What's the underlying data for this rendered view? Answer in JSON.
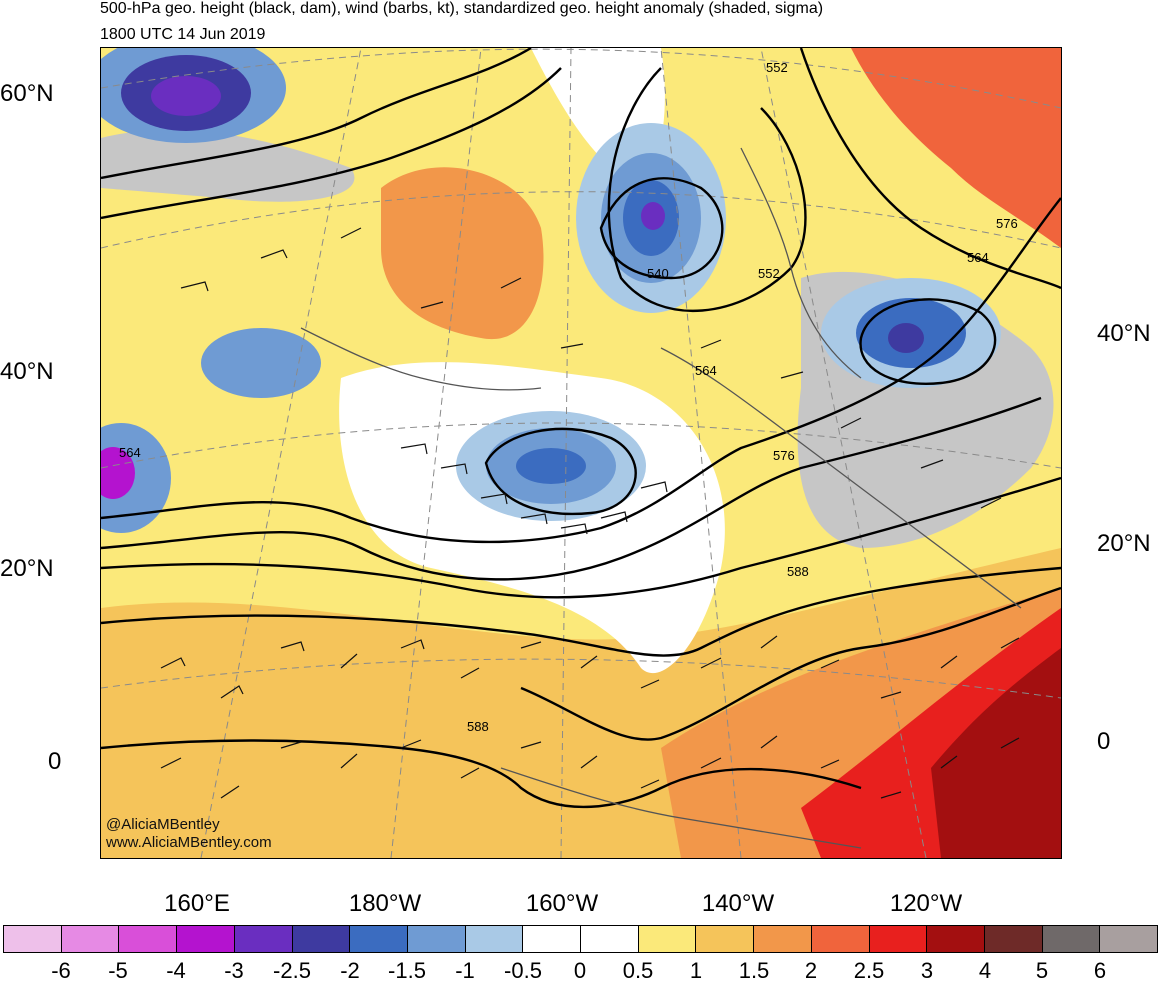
{
  "header": {
    "title": "500-hPa geo. height (black, dam), wind (barbs, kt), standardized geo. height anomaly (shaded, sigma)",
    "datetime": "1800 UTC 14 Jun 2019"
  },
  "credits": {
    "twitter": "@AliciaMBentley",
    "website": "www.AliciaMBentley.com"
  },
  "lat_labels_left": [
    "60°N",
    "40°N",
    "20°N",
    "0"
  ],
  "lat_labels_right": [
    "40°N",
    "20°N",
    "0"
  ],
  "lon_labels": [
    "160°E",
    "180°W",
    "160°W",
    "140°W",
    "120°W"
  ],
  "contour_labels": [
    "552",
    "576",
    "564",
    "540",
    "552",
    "564",
    "576",
    "564",
    "588",
    "588"
  ],
  "colorbar": {
    "tick_labels": [
      "-6",
      "-5",
      "-4",
      "-3",
      "-2.5",
      "-2",
      "-1.5",
      "-1",
      "-0.5",
      "0",
      "0.5",
      "1",
      "1.5",
      "2",
      "2.5",
      "3",
      "4",
      "5",
      "6"
    ],
    "colors": [
      "#eec0ea",
      "#e68ae4",
      "#d94fd9",
      "#b413cf",
      "#6a2ec0",
      "#3e3aa0",
      "#3b6cc0",
      "#6f9bd3",
      "#a9c9e6",
      "#ffffff",
      "#ffffff",
      "#fbe97a",
      "#f5c45a",
      "#f2974a",
      "#f0643c",
      "#e8201e",
      "#a30f10",
      "#6e2a28",
      "#6f6969",
      "#a89f9f"
    ]
  },
  "map_palette": {
    "land_outline": "#555555",
    "contour": "#000000",
    "neutral_shade": "#c6c6c6"
  }
}
